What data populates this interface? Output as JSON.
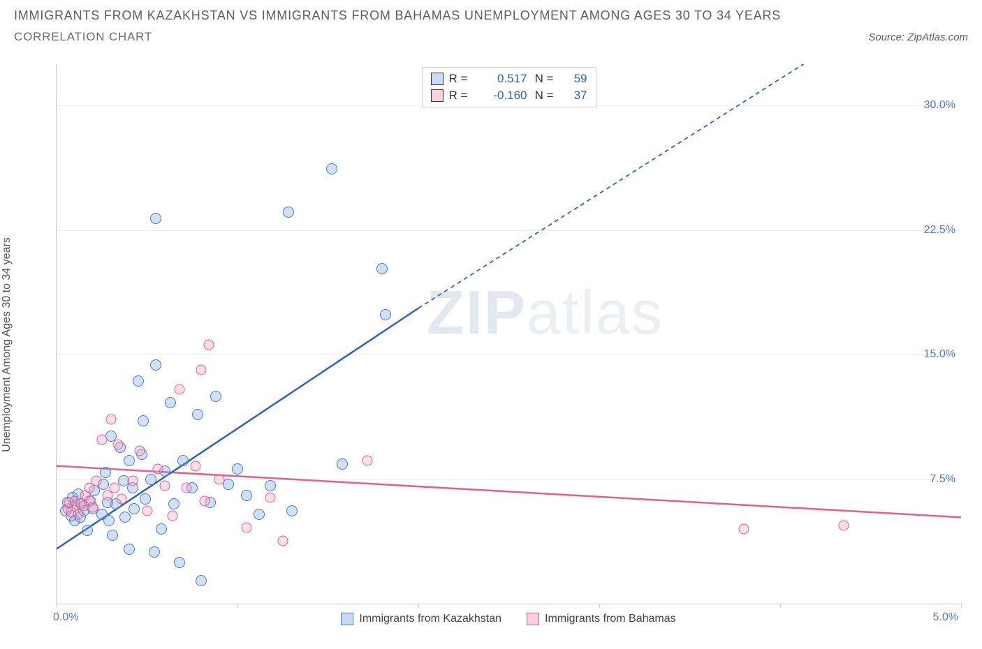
{
  "title": "IMMIGRANTS FROM KAZAKHSTAN VS IMMIGRANTS FROM BAHAMAS UNEMPLOYMENT AMONG AGES 30 TO 34 YEARS",
  "subtitle": "CORRELATION CHART",
  "source_prefix": "Source: ",
  "source_name": "ZipAtlas.com",
  "y_axis_label": "Unemployment Among Ages 30 to 34 years",
  "watermark_a": "ZIP",
  "watermark_b": "atlas",
  "chart": {
    "type": "scatter",
    "xlim": [
      0,
      5.0
    ],
    "ylim": [
      0,
      32.5
    ],
    "x_tick_start": "0.0%",
    "x_tick_end": "5.0%",
    "y_ticks": [
      7.5,
      15.0,
      22.5,
      30.0
    ],
    "y_tick_labels": [
      "7.5%",
      "15.0%",
      "22.5%",
      "30.0%"
    ],
    "x_tick_positions_pct": [
      0,
      20,
      40,
      60,
      80,
      100
    ],
    "background_color": "#ffffff",
    "grid_color": "#eceef2",
    "axis_color": "#c9c9c9",
    "tick_label_color": "#4a77d4"
  },
  "series": {
    "blue": {
      "name": "Immigrants from Kazakhstan",
      "color_fill": "rgba(120,165,230,0.35)",
      "color_stroke": "#4a77d4",
      "R": "0.517",
      "N": "59",
      "trend": {
        "color": "#2a62c9",
        "solid_from": [
          0.0,
          3.3
        ],
        "solid_to": [
          2.0,
          17.8
        ],
        "dash_to": [
          4.2,
          33.0
        ]
      },
      "points": [
        [
          0.05,
          5.6
        ],
        [
          0.06,
          6.1
        ],
        [
          0.08,
          5.3
        ],
        [
          0.09,
          6.4
        ],
        [
          0.1,
          5.0
        ],
        [
          0.1,
          5.9
        ],
        [
          0.12,
          6.6
        ],
        [
          0.13,
          5.2
        ],
        [
          0.14,
          6.0
        ],
        [
          0.15,
          5.6
        ],
        [
          0.17,
          4.4
        ],
        [
          0.18,
          6.2
        ],
        [
          0.2,
          5.7
        ],
        [
          0.21,
          6.8
        ],
        [
          0.25,
          5.4
        ],
        [
          0.26,
          7.2
        ],
        [
          0.27,
          7.9
        ],
        [
          0.28,
          6.1
        ],
        [
          0.29,
          5.0
        ],
        [
          0.3,
          10.1
        ],
        [
          0.31,
          4.1
        ],
        [
          0.33,
          6.0
        ],
        [
          0.35,
          9.4
        ],
        [
          0.37,
          7.4
        ],
        [
          0.38,
          5.2
        ],
        [
          0.4,
          8.6
        ],
        [
          0.4,
          3.3
        ],
        [
          0.42,
          7.0
        ],
        [
          0.43,
          5.7
        ],
        [
          0.45,
          13.4
        ],
        [
          0.47,
          9.0
        ],
        [
          0.48,
          11.0
        ],
        [
          0.49,
          6.3
        ],
        [
          0.52,
          7.5
        ],
        [
          0.54,
          3.1
        ],
        [
          0.55,
          14.4
        ],
        [
          0.55,
          23.2
        ],
        [
          0.58,
          4.5
        ],
        [
          0.6,
          8.0
        ],
        [
          0.63,
          12.1
        ],
        [
          0.65,
          6.0
        ],
        [
          0.68,
          2.5
        ],
        [
          0.7,
          8.6
        ],
        [
          0.75,
          7.0
        ],
        [
          0.78,
          11.4
        ],
        [
          0.8,
          1.4
        ],
        [
          0.85,
          6.1
        ],
        [
          0.88,
          12.5
        ],
        [
          0.95,
          7.2
        ],
        [
          1.0,
          8.1
        ],
        [
          1.05,
          6.5
        ],
        [
          1.12,
          5.4
        ],
        [
          1.18,
          7.1
        ],
        [
          1.28,
          23.6
        ],
        [
          1.3,
          5.6
        ],
        [
          1.52,
          26.2
        ],
        [
          1.58,
          8.4
        ],
        [
          1.8,
          20.2
        ],
        [
          1.82,
          17.4
        ]
      ]
    },
    "pink": {
      "name": "Immigrants from Bahamas",
      "color_fill": "rgba(242,160,190,0.35)",
      "color_stroke": "#e75d8e",
      "R": "-0.160",
      "N": "37",
      "trend": {
        "color": "#e75d8e",
        "from": [
          0.0,
          8.3
        ],
        "to": [
          5.0,
          5.2
        ]
      },
      "points": [
        [
          0.06,
          5.7
        ],
        [
          0.07,
          6.1
        ],
        [
          0.08,
          5.5
        ],
        [
          0.1,
          6.2
        ],
        [
          0.12,
          5.4
        ],
        [
          0.13,
          6.0
        ],
        [
          0.15,
          5.9
        ],
        [
          0.16,
          6.5
        ],
        [
          0.18,
          7.0
        ],
        [
          0.19,
          6.2
        ],
        [
          0.2,
          5.8
        ],
        [
          0.22,
          7.4
        ],
        [
          0.25,
          9.9
        ],
        [
          0.28,
          6.5
        ],
        [
          0.3,
          11.1
        ],
        [
          0.32,
          7.0
        ],
        [
          0.34,
          9.6
        ],
        [
          0.36,
          6.3
        ],
        [
          0.42,
          7.4
        ],
        [
          0.46,
          9.2
        ],
        [
          0.5,
          5.6
        ],
        [
          0.56,
          8.1
        ],
        [
          0.6,
          7.1
        ],
        [
          0.64,
          5.3
        ],
        [
          0.68,
          12.9
        ],
        [
          0.72,
          7.0
        ],
        [
          0.77,
          8.3
        ],
        [
          0.82,
          6.2
        ],
        [
          0.84,
          15.6
        ],
        [
          0.8,
          14.1
        ],
        [
          0.9,
          7.5
        ],
        [
          1.05,
          4.6
        ],
        [
          1.18,
          6.4
        ],
        [
          1.25,
          3.8
        ],
        [
          1.72,
          8.6
        ],
        [
          3.8,
          4.5
        ],
        [
          4.35,
          4.7
        ]
      ]
    }
  },
  "stats_legend_labels": {
    "R": "R =",
    "N": "N ="
  },
  "bottom_legend": {
    "blue_label": "Immigrants from Kazakhstan",
    "pink_label": "Immigrants from Bahamas"
  }
}
